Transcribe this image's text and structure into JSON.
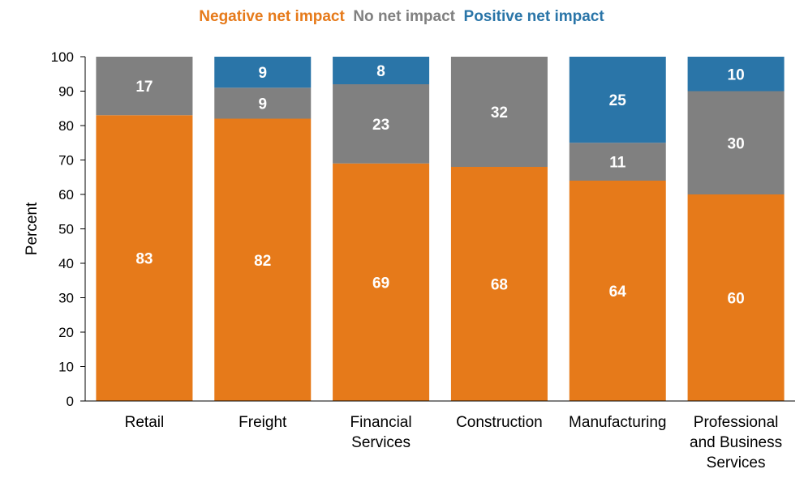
{
  "chart_data": {
    "type": "bar",
    "stacked": true,
    "title": "",
    "xlabel": "",
    "ylabel": "Percent",
    "ylim": [
      0,
      100
    ],
    "yticks": [
      0,
      10,
      20,
      30,
      40,
      50,
      60,
      70,
      80,
      90,
      100
    ],
    "categories": [
      [
        "Retail"
      ],
      [
        "Freight"
      ],
      [
        "Financial",
        "Services"
      ],
      [
        "Construction"
      ],
      [
        "Manufacturing"
      ],
      [
        "Professional",
        "and Business",
        "Services"
      ]
    ],
    "series": [
      {
        "name": "Negative net impact",
        "color": "#E67A1A",
        "values": [
          83,
          82,
          69,
          68,
          64,
          60
        ]
      },
      {
        "name": "No net impact",
        "color": "#808080",
        "values": [
          17,
          9,
          23,
          32,
          11,
          30
        ]
      },
      {
        "name": "Positive net impact",
        "color": "#2A75A8",
        "values": [
          0,
          9,
          8,
          0,
          25,
          10
        ]
      }
    ],
    "legend_position": "top",
    "grid": false
  }
}
